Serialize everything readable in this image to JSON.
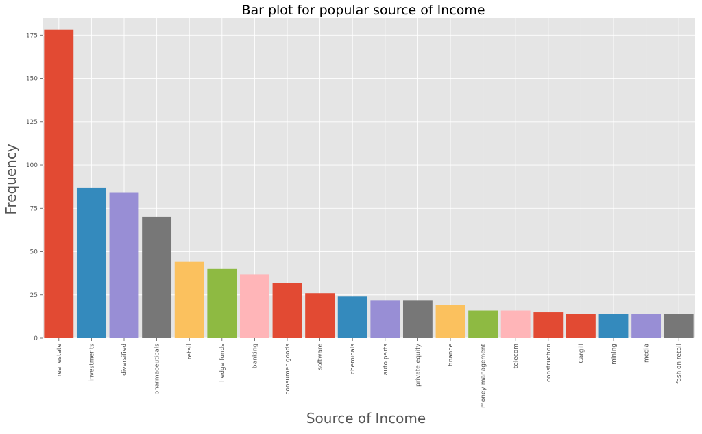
{
  "chart_data": {
    "type": "bar",
    "title": "Bar plot for popular source of Income",
    "xlabel": "Source of Income",
    "ylabel": "Frequency",
    "ylim": [
      0,
      185
    ],
    "yticks": [
      0,
      25,
      50,
      75,
      100,
      125,
      150,
      175
    ],
    "grid": true,
    "legend": "none",
    "categories": [
      "real estate",
      "investments",
      "diversified",
      "pharmaceuticals",
      "retail",
      "hedge funds",
      "banking",
      "consumer goods",
      "software",
      "chemicals",
      "auto parts",
      "private equity",
      "finance",
      "money management",
      "telecom",
      "construction",
      "Cargill",
      "mining",
      "media",
      "fashion retail"
    ],
    "values": [
      178,
      87,
      84,
      70,
      44,
      40,
      37,
      32,
      26,
      24,
      22,
      22,
      19,
      16,
      16,
      15,
      14,
      14,
      14,
      14
    ],
    "colors": [
      "#E24A33",
      "#348ABD",
      "#988ED5",
      "#777777",
      "#FBC15E",
      "#8EBA42",
      "#FFB5B8",
      "#E24A33",
      "#E24A33",
      "#348ABD",
      "#988ED5",
      "#777777",
      "#FBC15E",
      "#8EBA42",
      "#FFB5B8",
      "#E24A33",
      "#E24A33",
      "#348ABD",
      "#988ED5",
      "#777777"
    ],
    "plot_background": "#E5E5E5",
    "grid_color": "#FFFFFF"
  }
}
